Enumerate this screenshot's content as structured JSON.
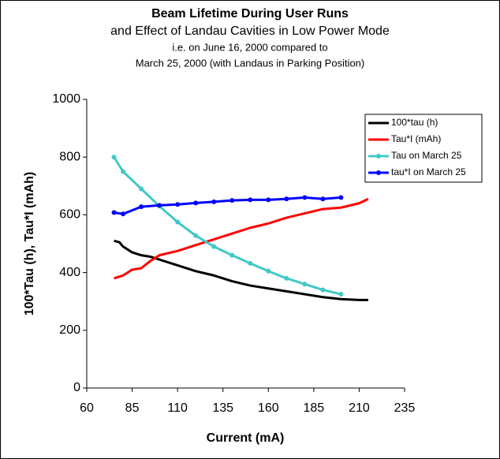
{
  "chart_data": {
    "type": "line",
    "title": "Beam Lifetime During User Runs",
    "subtitle": [
      "and Effect of Landau Cavities in Low Power Mode",
      "i.e. on June 16, 2000 compared to",
      "March 25, 2000 (with Landaus in Parking Position)"
    ],
    "x_label": "Current (mA)",
    "y_label": "100*Tau (h), Tau*I (mAh)",
    "xlim": [
      60,
      235
    ],
    "xticks": [
      60,
      85,
      110,
      135,
      160,
      185,
      210,
      235
    ],
    "ylim": [
      0,
      1000
    ],
    "yticks": [
      0,
      200,
      400,
      600,
      800,
      1000
    ],
    "legend": "top right",
    "series": [
      {
        "name": "100*tau (h)",
        "color": "#000000",
        "markers": false,
        "x": [
          75,
          78,
          80,
          85,
          90,
          95,
          100,
          110,
          120,
          130,
          140,
          150,
          160,
          170,
          180,
          190,
          200,
          210,
          215
        ],
        "values": [
          510,
          505,
          490,
          470,
          460,
          455,
          445,
          425,
          405,
          390,
          370,
          355,
          345,
          335,
          325,
          315,
          308,
          305,
          305
        ]
      },
      {
        "name": "Tau*I (mAh)",
        "color": "#ff0000",
        "markers": false,
        "x": [
          75,
          80,
          85,
          90,
          95,
          100,
          110,
          120,
          130,
          140,
          150,
          160,
          170,
          180,
          190,
          200,
          210,
          215
        ],
        "values": [
          380,
          390,
          410,
          415,
          440,
          460,
          475,
          495,
          515,
          535,
          555,
          570,
          590,
          605,
          620,
          625,
          640,
          655
        ]
      },
      {
        "name": "Tau on March 25",
        "color": "#40c8c8",
        "markers": true,
        "x": [
          75,
          80,
          90,
          100,
          110,
          120,
          130,
          140,
          150,
          160,
          170,
          180,
          190,
          200
        ],
        "values": [
          800,
          750,
          690,
          630,
          575,
          528,
          490,
          460,
          432,
          405,
          380,
          360,
          340,
          325
        ]
      },
      {
        "name": "tau*I on March 25",
        "color": "#0000ff",
        "markers": true,
        "x": [
          75,
          80,
          90,
          100,
          110,
          120,
          130,
          140,
          150,
          160,
          170,
          180,
          190,
          200
        ],
        "values": [
          608,
          603,
          628,
          633,
          636,
          641,
          645,
          650,
          652,
          652,
          655,
          660,
          655,
          660
        ]
      }
    ]
  }
}
